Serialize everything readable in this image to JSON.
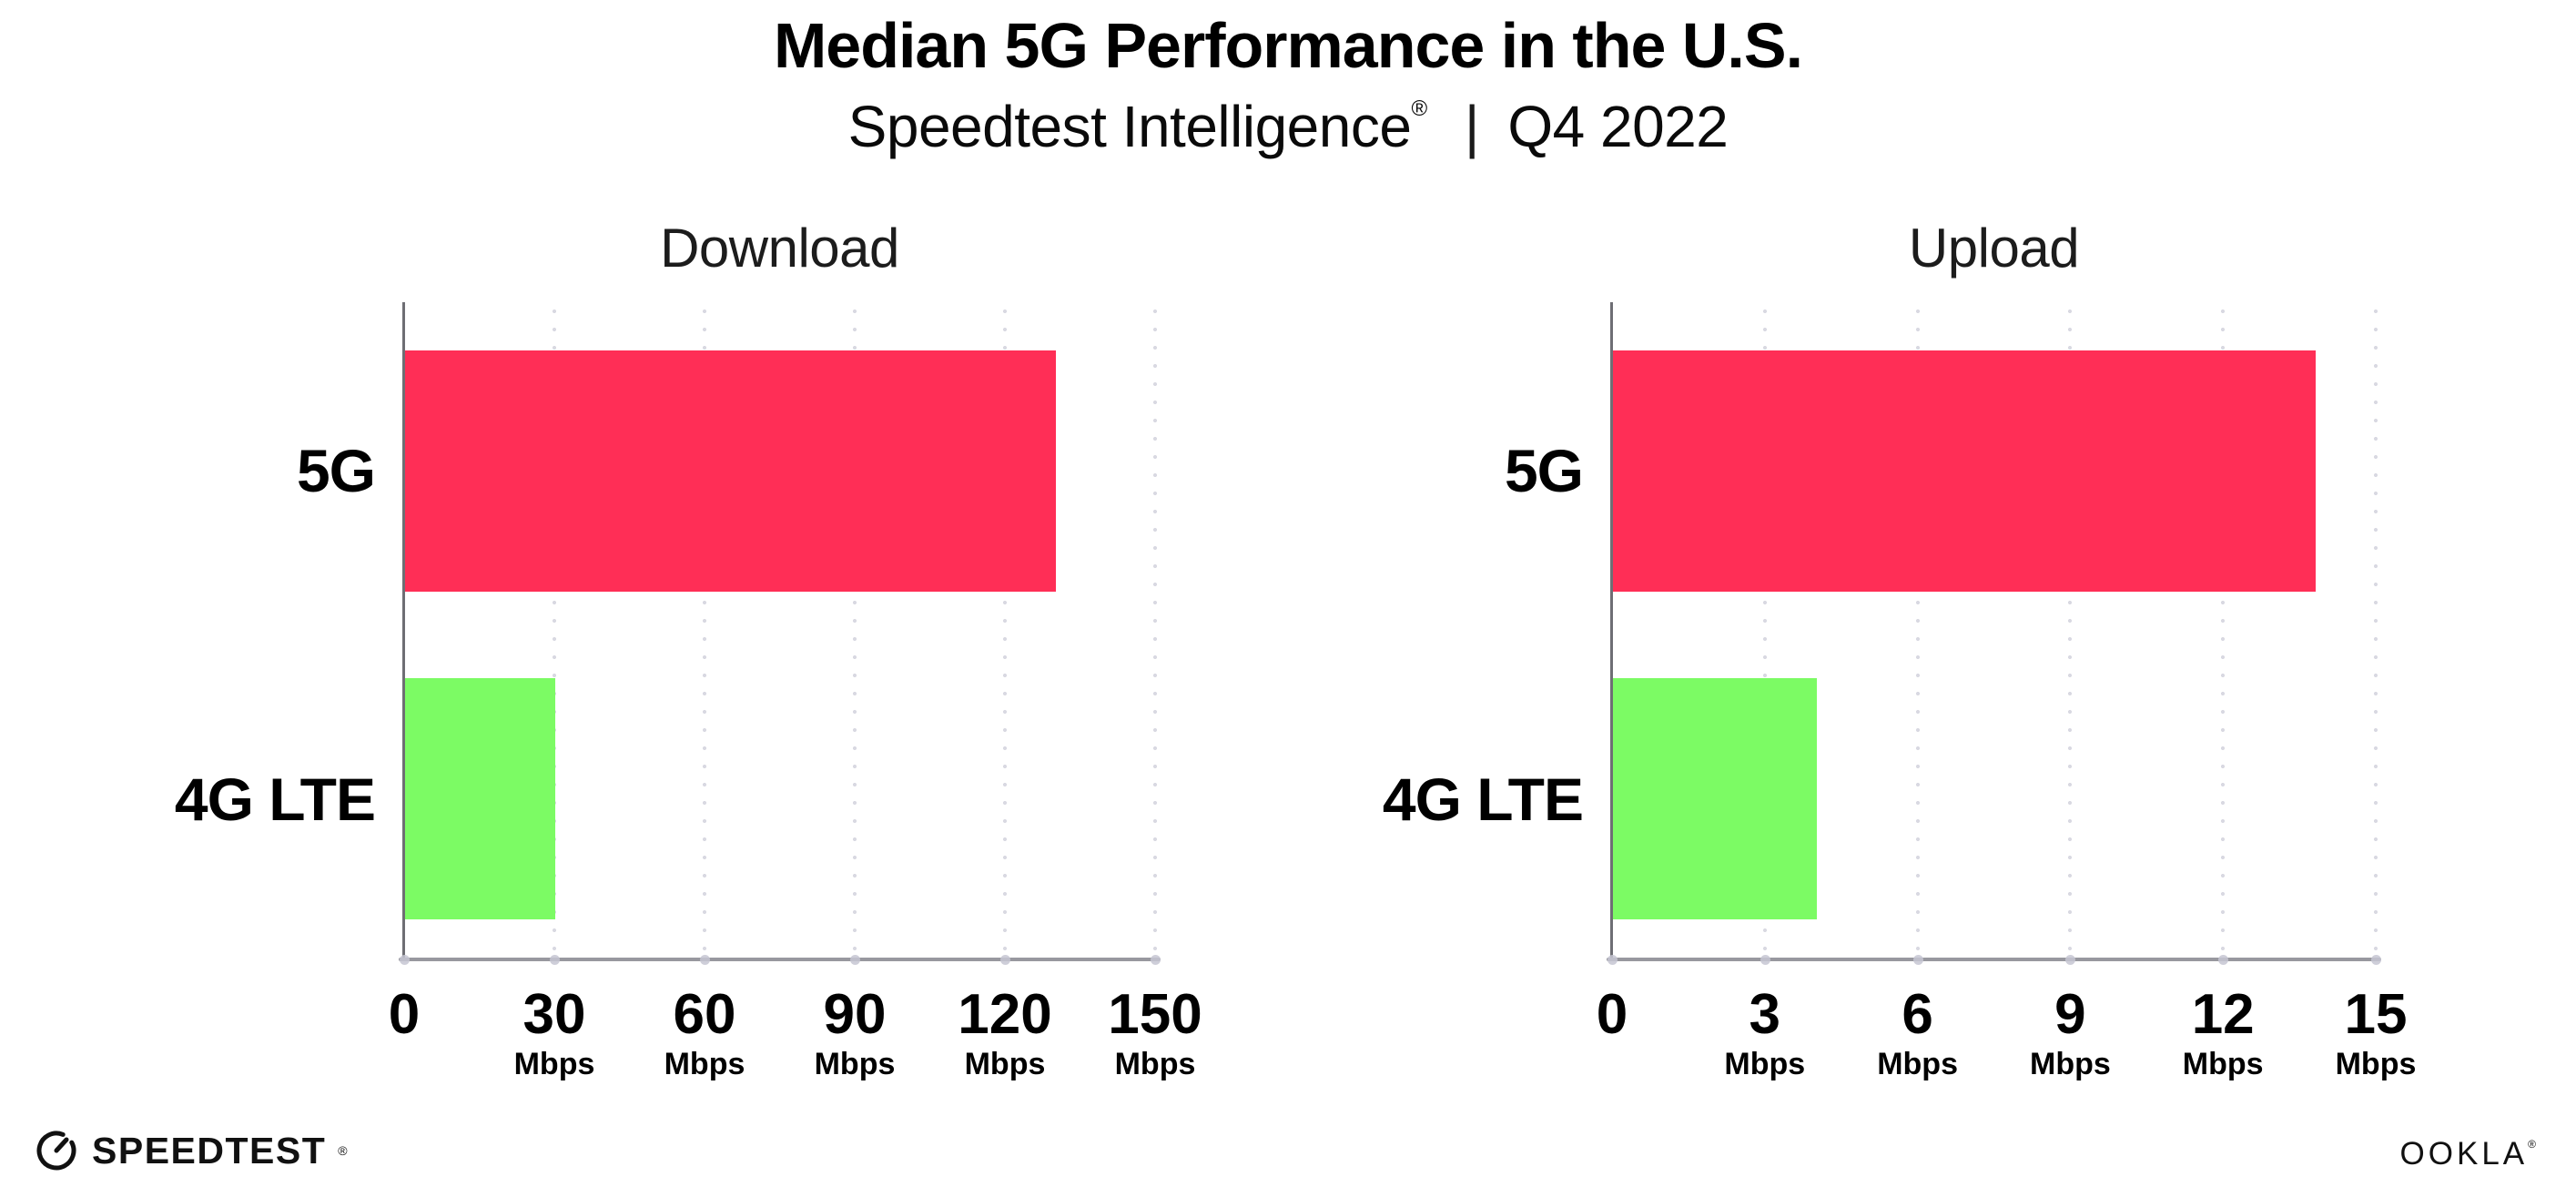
{
  "header": {
    "title": "Median 5G Performance in the U.S.",
    "subtitle_brand": "Speedtest Intelligence",
    "subtitle_reg": "®",
    "subtitle_sep": "|",
    "subtitle_period": "Q4 2022"
  },
  "chart_data": [
    {
      "type": "bar",
      "orientation": "horizontal",
      "title": "Download",
      "categories": [
        "5G",
        "4G LTE"
      ],
      "values": [
        130,
        30
      ],
      "unit": "Mbps",
      "xlim": [
        0,
        150
      ],
      "xticks": [
        0,
        30,
        60,
        90,
        120,
        150
      ],
      "bar_colors": [
        "#FF2E56",
        "#7CFB64"
      ],
      "grid": "dotted-vertical",
      "legend": "none"
    },
    {
      "type": "bar",
      "orientation": "horizontal",
      "title": "Upload",
      "categories": [
        "5G",
        "4G LTE"
      ],
      "values": [
        13.8,
        4
      ],
      "unit": "Mbps",
      "xlim": [
        0,
        15
      ],
      "xticks": [
        0,
        3,
        6,
        9,
        12,
        15
      ],
      "bar_colors": [
        "#FF2E56",
        "#7CFB64"
      ],
      "grid": "dotted-vertical",
      "legend": "none"
    }
  ],
  "footer": {
    "speedtest_label": "SPEEDTEST",
    "speedtest_mark": "®",
    "ookla_label": "OOKLA",
    "ookla_mark": "®"
  },
  "colors": {
    "bar_5g": "#FF2E56",
    "bar_4g_lte": "#7CFB64",
    "axis": "#98989f",
    "gridline": "#d9d9e2",
    "text": "#000000"
  }
}
